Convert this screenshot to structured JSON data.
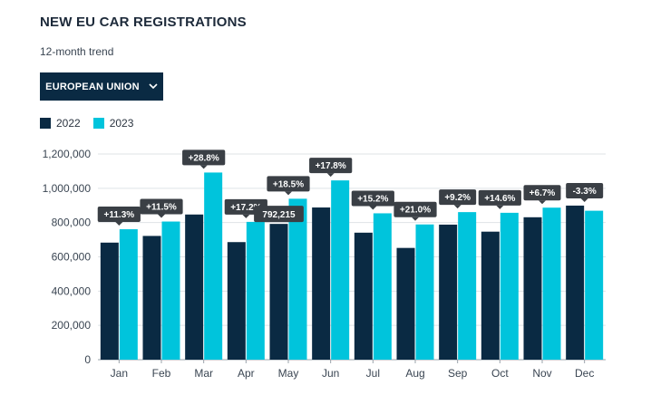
{
  "header": {
    "title": "NEW EU CAR REGISTRATIONS",
    "subtitle": "12-month trend"
  },
  "dropdown": {
    "selected": "EUROPEAN UNION",
    "icon": "chevron-down-icon"
  },
  "colors": {
    "series_2022": "#0a2a43",
    "series_2023": "#00c4dc",
    "label_bg": "#3a3f45",
    "grid": "#dfe3e6"
  },
  "chart_data": {
    "type": "bar",
    "categories": [
      "Jan",
      "Feb",
      "Mar",
      "Apr",
      "May",
      "Jun",
      "Jul",
      "Aug",
      "Sep",
      "Oct",
      "Nov",
      "Dec"
    ],
    "series": [
      {
        "name": "2022",
        "values": [
          683000,
          722000,
          847000,
          686000,
          792215,
          888000,
          741000,
          652000,
          788000,
          747000,
          831000,
          899000
        ]
      },
      {
        "name": "2023",
        "values": [
          761000,
          806000,
          1092000,
          804000,
          939000,
          1046000,
          854000,
          789000,
          861000,
          857000,
          887000,
          869000
        ]
      }
    ],
    "change_labels": [
      "+11.3%",
      "+11.5%",
      "+28.8%",
      "+17.2%",
      "+18.5%",
      "+17.8%",
      "+15.2%",
      "+21.0%",
      "+9.2%",
      "+14.6%",
      "+6.7%",
      "-3.3%"
    ],
    "tooltip": {
      "category": "May",
      "series": "2022",
      "text": "792,215"
    },
    "y_ticks": [
      "0",
      "200,000",
      "400,000",
      "600,000",
      "800,000",
      "1,000,000",
      "1,200,000"
    ],
    "ylim": [
      0,
      1200000
    ],
    "grid": true,
    "legend": "top-left",
    "title": "NEW EU CAR REGISTRATIONS",
    "xlabel": "",
    "ylabel": ""
  }
}
